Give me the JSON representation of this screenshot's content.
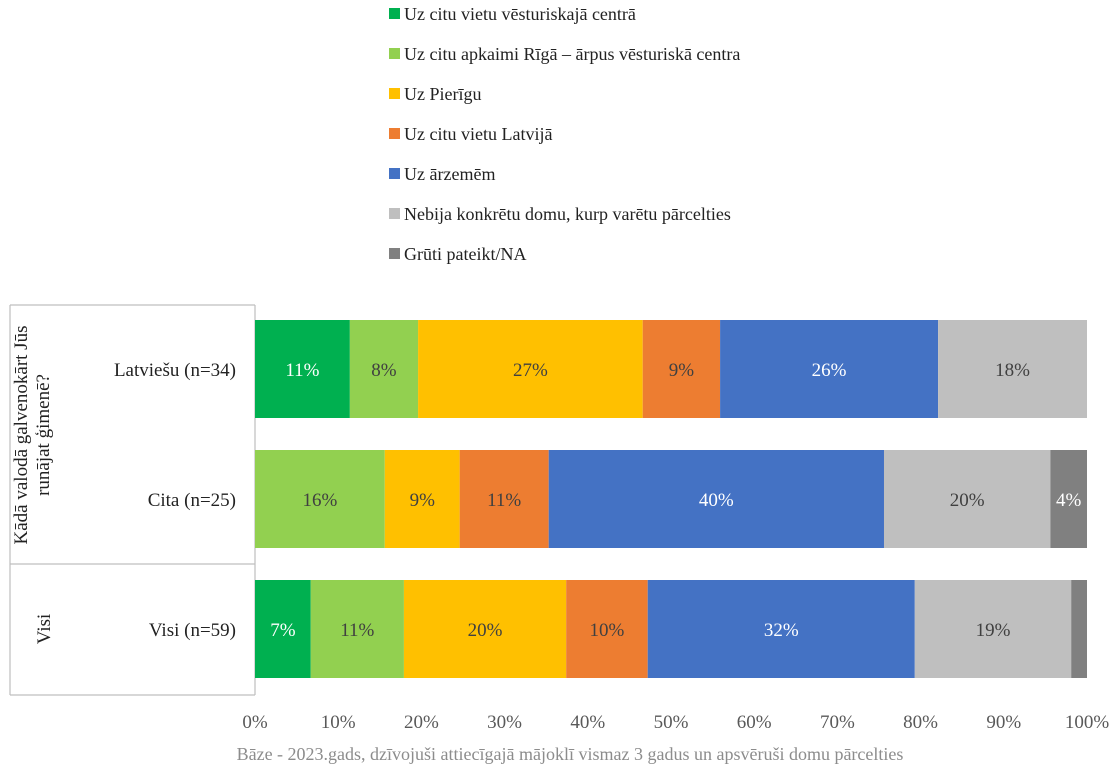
{
  "chart_data": {
    "type": "bar",
    "orientation": "horizontal",
    "stacked": true,
    "title": "",
    "xlabel": "",
    "ylabel": "",
    "xlim": [
      0,
      100
    ],
    "x_ticks": [
      "0%",
      "10%",
      "20%",
      "30%",
      "40%",
      "50%",
      "60%",
      "70%",
      "80%",
      "90%",
      "100%"
    ],
    "grid": false,
    "legend_position": "top",
    "groups": [
      {
        "label": "Kādā valodā galvenokārt Jūs runājat ģimenē?",
        "categories": [
          "Latviešu (n=34)",
          "Cita (n=25)"
        ]
      },
      {
        "label": "Visi",
        "categories": [
          "Visi (n=59)"
        ]
      }
    ],
    "categories": [
      "Latviešu (n=34)",
      "Cita (n=25)",
      "Visi (n=59)"
    ],
    "series": [
      {
        "name": "Uz citu vietu vēsturiskajā centrā",
        "color": "#00b050",
        "label_color": "#ffffff",
        "values": [
          11.4,
          0,
          6.7
        ],
        "labels": [
          "11%",
          "",
          "7%"
        ]
      },
      {
        "name": "Uz citu apkaimi Rīgā – ārpus vēsturiskā centra",
        "color": "#92d050",
        "label_color": "#404040",
        "values": [
          8.2,
          15.6,
          11.2
        ],
        "labels": [
          "8%",
          "16%",
          "11%"
        ]
      },
      {
        "name": "Uz Pierīgu",
        "color": "#ffc000",
        "label_color": "#404040",
        "values": [
          27.0,
          9.0,
          19.5
        ],
        "labels": [
          "27%",
          "9%",
          "20%"
        ]
      },
      {
        "name": "Uz citu vietu Latvijā",
        "color": "#ed7d31",
        "label_color": "#404040",
        "values": [
          9.3,
          10.7,
          9.8
        ],
        "labels": [
          "9%",
          "11%",
          "10%"
        ]
      },
      {
        "name": "Uz ārzemēm",
        "color": "#4472c4",
        "label_color": "#ffffff",
        "values": [
          26.2,
          40.3,
          32.1
        ],
        "labels": [
          "26%",
          "40%",
          "32%"
        ]
      },
      {
        "name": "Nebija konkrētu domu, kurp varētu pārcelties",
        "color": "#bfbfbf",
        "label_color": "#404040",
        "values": [
          17.9,
          20.0,
          18.8
        ],
        "labels": [
          "18%",
          "20%",
          "19%"
        ]
      },
      {
        "name": "Grūti pateikt/NA",
        "color": "#808080",
        "label_color": "#ffffff",
        "values": [
          0,
          4.4,
          1.9
        ],
        "labels": [
          "",
          "4%",
          ""
        ]
      }
    ],
    "footnote": "Bāze - 2023.gads, dzīvojuši attiecīgajā mājoklī vismaz 3 gadus un apsvēruši domu pārcelties"
  }
}
